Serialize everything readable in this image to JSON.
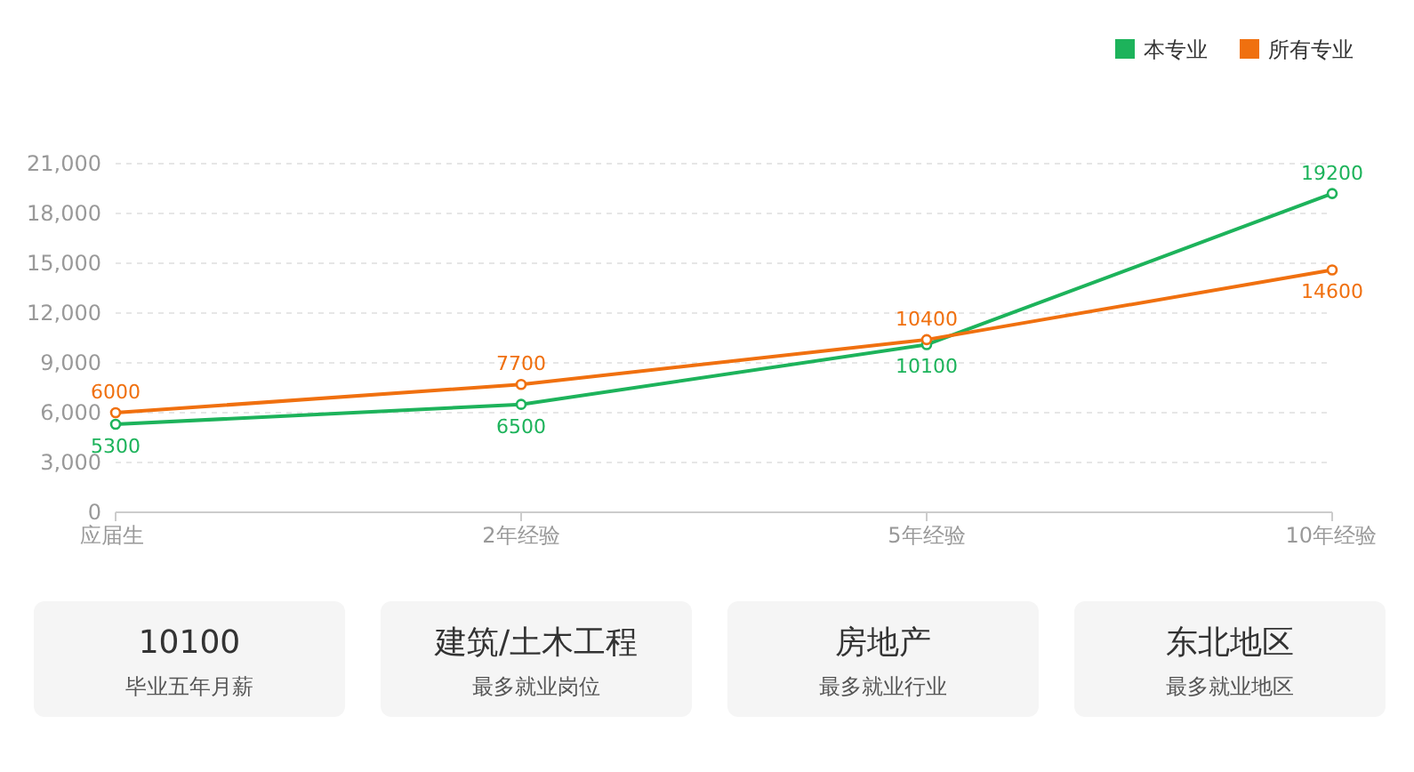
{
  "chart_data": [
    {
      "type": "line",
      "categories": [
        "应届生",
        "2年经验",
        "5年经验",
        "10年经验"
      ],
      "series": [
        {
          "name": "本专业",
          "color": "#1db35b",
          "values": [
            5300,
            6500,
            10100,
            19200
          ]
        },
        {
          "name": "所有专业",
          "color": "#f0700f",
          "values": [
            6000,
            7700,
            10400,
            14600
          ]
        }
      ],
      "ylim": [
        0,
        21000
      ],
      "yticks": [
        0,
        {
          "value": 3000,
          "label": "3,000"
        },
        {
          "value": 6000,
          "label": "6,000"
        },
        {
          "value": 9000,
          "label": "9,000"
        },
        {
          "value": 12000,
          "label": "12,000"
        },
        {
          "value": 15000,
          "label": "15,000"
        },
        {
          "value": 18000,
          "label": "18,000"
        },
        {
          "value": 21000,
          "label": "21,000"
        }
      ],
      "grid": "y",
      "legend": "top right",
      "marker": "circle",
      "data_labels": true
    },
    {
      "type": "other",
      "annotations": [
        "10100",
        "毕业五年月薪",
        "建筑/土木工程",
        "最多就业岗位",
        "房地产",
        "最多就业行业",
        "东北地区",
        "最多就业地区"
      ]
    }
  ]
}
